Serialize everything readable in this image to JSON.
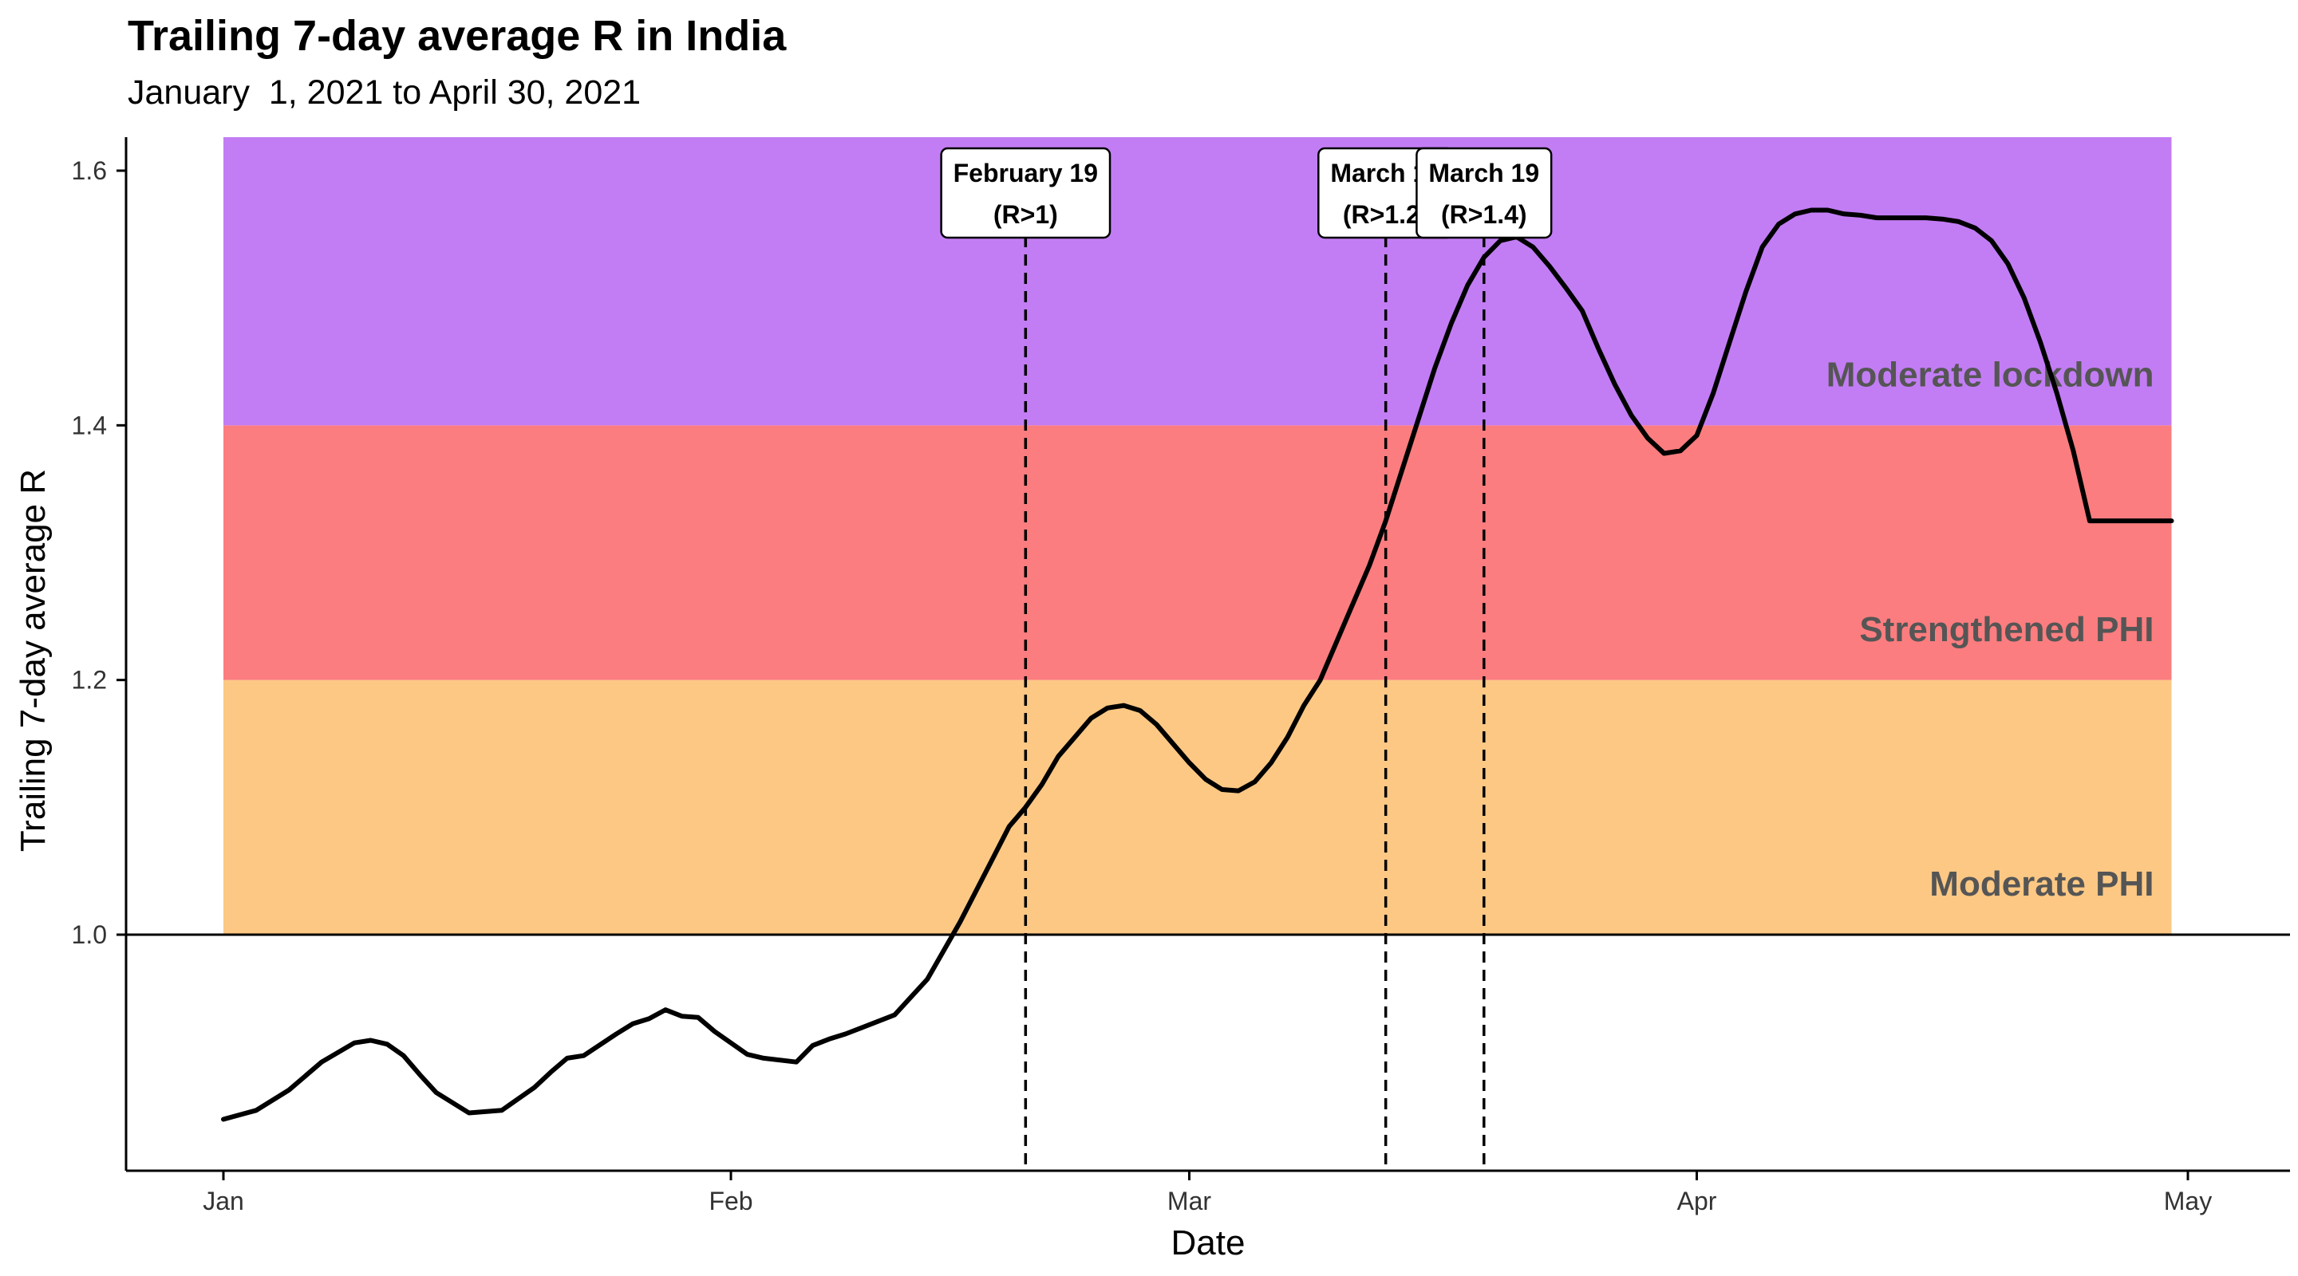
{
  "chart_data": {
    "type": "line",
    "title": "Trailing 7-day average R in India",
    "subtitle": "January  1, 2021 to April 30, 2021",
    "xlabel": "Date",
    "ylabel": "Trailing 7-day average R",
    "xlim": [
      "2021-01-01",
      "2021-04-30"
    ],
    "ylim": [
      0.84,
      1.62
    ],
    "x_ticks": [
      {
        "date": "2021-01-01",
        "label": "Jan"
      },
      {
        "date": "2021-02-01",
        "label": "Feb"
      },
      {
        "date": "2021-03-01",
        "label": "Mar"
      },
      {
        "date": "2021-04-01",
        "label": "Apr"
      },
      {
        "date": "2021-05-01",
        "label": "May"
      }
    ],
    "y_ticks": [
      1.0,
      1.2,
      1.4,
      1.6
    ],
    "y_tick_labels": [
      "1.0",
      "1.2",
      "1.4",
      "1.6"
    ],
    "grid": false,
    "reference_line": 1.0,
    "bands": [
      {
        "label": "Moderate PHI",
        "from": 1.0,
        "to": 1.2,
        "color": "#FCC884"
      },
      {
        "label": "Strengthened PHI",
        "from": 1.2,
        "to": 1.4,
        "color": "#FC7D7F"
      },
      {
        "label": "Moderate lockdown",
        "from": 1.4,
        "to": 1.62,
        "color": "#C27DF4"
      }
    ],
    "band_label_color": "#555555",
    "line_color": "#000000",
    "annotations": [
      {
        "date": "2021-02-19",
        "line1": "February 19",
        "line2": "(R>1)"
      },
      {
        "date": "2021-03-13",
        "line1": "March 13",
        "line2": "(R>1.2)"
      },
      {
        "date": "2021-03-19",
        "line1": "March 19",
        "line2": "(R>1.4)"
      }
    ],
    "series": [
      {
        "x": [
          "2021-01-01",
          "2021-01-03",
          "2021-01-05",
          "2021-01-07",
          "2021-01-09",
          "2021-01-10",
          "2021-01-11",
          "2021-01-12",
          "2021-01-13",
          "2021-01-14",
          "2021-01-16",
          "2021-01-18",
          "2021-01-20",
          "2021-01-21",
          "2021-01-22",
          "2021-01-23",
          "2021-01-25",
          "2021-01-26",
          "2021-01-27",
          "2021-01-28",
          "2021-01-29",
          "2021-01-30",
          "2021-01-31",
          "2021-02-01",
          "2021-02-02",
          "2021-02-03",
          "2021-02-05",
          "2021-02-06",
          "2021-02-07",
          "2021-02-08",
          "2021-02-09",
          "2021-02-11",
          "2021-02-13",
          "2021-02-15",
          "2021-02-17",
          "2021-02-18",
          "2021-02-19",
          "2021-02-20",
          "2021-02-21",
          "2021-02-22",
          "2021-02-23",
          "2021-02-24",
          "2021-02-25",
          "2021-02-26",
          "2021-02-27",
          "2021-02-28",
          "2021-03-01",
          "2021-03-02",
          "2021-03-03",
          "2021-03-04",
          "2021-03-05",
          "2021-03-06",
          "2021-03-07",
          "2021-03-08",
          "2021-03-09",
          "2021-03-10",
          "2021-03-11",
          "2021-03-12",
          "2021-03-13",
          "2021-03-14",
          "2021-03-15",
          "2021-03-16",
          "2021-03-17",
          "2021-03-18",
          "2021-03-19",
          "2021-03-20",
          "2021-03-21",
          "2021-03-22",
          "2021-03-23",
          "2021-03-24",
          "2021-03-25",
          "2021-03-26",
          "2021-03-27",
          "2021-03-28",
          "2021-03-29",
          "2021-03-30",
          "2021-03-31",
          "2021-04-01",
          "2021-04-02",
          "2021-04-03",
          "2021-04-04",
          "2021-04-05",
          "2021-04-06",
          "2021-04-07",
          "2021-04-08",
          "2021-04-09",
          "2021-04-10",
          "2021-04-11",
          "2021-04-12",
          "2021-04-13",
          "2021-04-14",
          "2021-04-15",
          "2021-04-16",
          "2021-04-17",
          "2021-04-18",
          "2021-04-19",
          "2021-04-20",
          "2021-04-21",
          "2021-04-22",
          "2021-04-23",
          "2021-04-24",
          "2021-04-25",
          "2021-04-26",
          "2021-04-27",
          "2021-04-28",
          "2021-04-29",
          "2021-04-30"
        ],
        "y": [
          0.855,
          0.862,
          0.878,
          0.9,
          0.915,
          0.917,
          0.914,
          0.905,
          0.89,
          0.876,
          0.86,
          0.862,
          0.88,
          0.892,
          0.903,
          0.905,
          0.922,
          0.93,
          0.934,
          0.941,
          0.936,
          0.935,
          0.924,
          0.915,
          0.906,
          0.903,
          0.9,
          0.913,
          0.918,
          0.922,
          0.927,
          0.937,
          0.965,
          1.01,
          1.06,
          1.085,
          1.1,
          1.118,
          1.14,
          1.155,
          1.17,
          1.178,
          1.18,
          1.176,
          1.165,
          1.15,
          1.135,
          1.122,
          1.114,
          1.113,
          1.12,
          1.135,
          1.155,
          1.18,
          1.2,
          1.23,
          1.26,
          1.29,
          1.325,
          1.365,
          1.405,
          1.445,
          1.48,
          1.51,
          1.532,
          1.545,
          1.548,
          1.54,
          1.525,
          1.508,
          1.49,
          1.46,
          1.432,
          1.408,
          1.39,
          1.378,
          1.38,
          1.392,
          1.425,
          1.465,
          1.505,
          1.54,
          1.558,
          1.566,
          1.569,
          1.569,
          1.566,
          1.565,
          1.563,
          1.563,
          1.563,
          1.563,
          1.562,
          1.56,
          1.555,
          1.545,
          1.527,
          1.5,
          1.465,
          1.425,
          1.38,
          1.325,
          1.325,
          1.325,
          1.325,
          1.325,
          1.325
        ]
      }
    ]
  }
}
